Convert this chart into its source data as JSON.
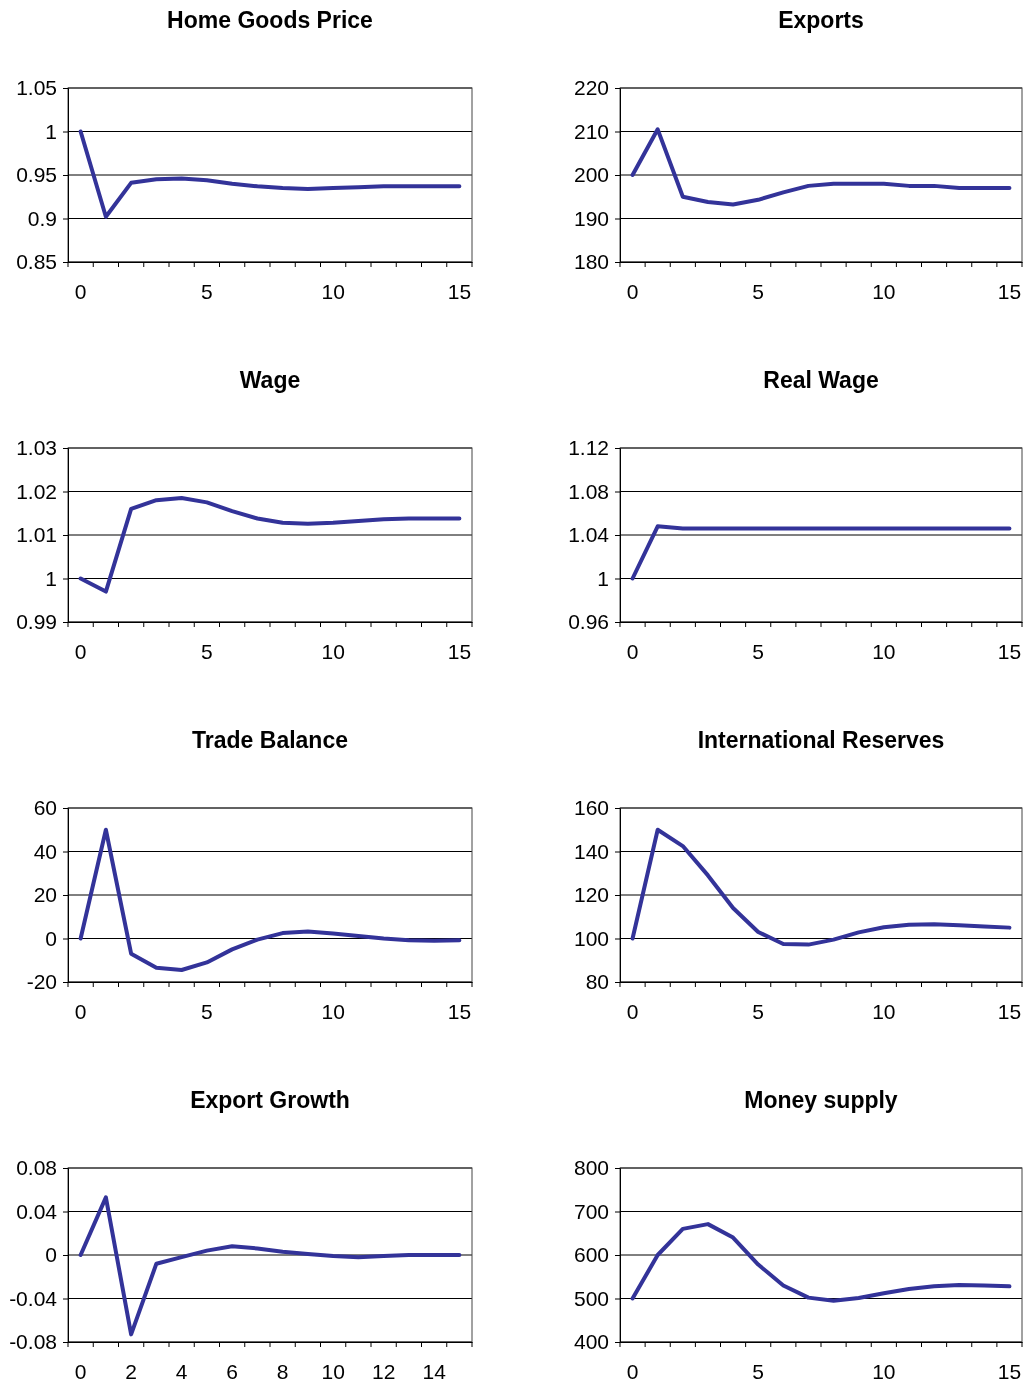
{
  "chart_data": [
    {
      "type": "line",
      "title": "Home Goods Price",
      "categories": [
        "0",
        null,
        null,
        null,
        null,
        "5",
        null,
        null,
        null,
        null,
        "10",
        null,
        null,
        null,
        null,
        "15"
      ],
      "values": [
        1.0,
        0.902,
        0.941,
        0.945,
        0.946,
        0.944,
        0.94,
        0.937,
        0.935,
        0.934,
        0.935,
        0.936,
        0.937,
        0.937,
        0.937,
        0.937
      ],
      "color": "#333399",
      "ylim": [
        0.85,
        1.05
      ],
      "yticks": [
        0.85,
        0.9,
        0.95,
        1,
        1.05
      ],
      "grid": "y"
    },
    {
      "type": "line",
      "title": "Exports",
      "categories": [
        "0",
        null,
        null,
        null,
        null,
        "5",
        null,
        null,
        null,
        null,
        "10",
        null,
        null,
        null,
        null,
        "15"
      ],
      "values": [
        200,
        210.5,
        195,
        193.8,
        193.2,
        194.3,
        196,
        197.5,
        198,
        198,
        198,
        197.5,
        197.5,
        197,
        197,
        197
      ],
      "color": "#333399",
      "ylim": [
        180,
        220
      ],
      "yticks": [
        180,
        190,
        200,
        210,
        220
      ],
      "grid": "y"
    },
    {
      "type": "line",
      "title": "Wage",
      "categories": [
        "0",
        null,
        null,
        null,
        null,
        "5",
        null,
        null,
        null,
        null,
        "10",
        null,
        null,
        null,
        null,
        "15"
      ],
      "values": [
        1.0,
        0.997,
        1.016,
        1.018,
        1.0185,
        1.0175,
        1.0155,
        1.0138,
        1.0128,
        1.0126,
        1.0128,
        1.0132,
        1.0136,
        1.0138,
        1.0138,
        1.0138
      ],
      "color": "#333399",
      "ylim": [
        0.99,
        1.03
      ],
      "yticks": [
        0.99,
        1,
        1.01,
        1.02,
        1.03
      ],
      "grid": "y"
    },
    {
      "type": "line",
      "title": "Real Wage",
      "categories": [
        "0",
        null,
        null,
        null,
        null,
        "5",
        null,
        null,
        null,
        null,
        "10",
        null,
        null,
        null,
        null,
        "15"
      ],
      "values": [
        1.0,
        1.048,
        1.046,
        1.046,
        1.046,
        1.046,
        1.046,
        1.046,
        1.046,
        1.046,
        1.046,
        1.046,
        1.046,
        1.046,
        1.046,
        1.046
      ],
      "color": "#333399",
      "ylim": [
        0.96,
        1.12
      ],
      "yticks": [
        0.96,
        1,
        1.04,
        1.08,
        1.12
      ],
      "grid": "y"
    },
    {
      "type": "line",
      "title": "Trade Balance",
      "categories": [
        "0",
        null,
        null,
        null,
        null,
        "5",
        null,
        null,
        null,
        null,
        "10",
        null,
        null,
        null,
        null,
        "15"
      ],
      "values": [
        0,
        50,
        -7,
        -13.5,
        -14.5,
        -11,
        -5,
        -0.5,
        2.5,
        3.2,
        2.3,
        1.2,
        0,
        -0.8,
        -1,
        -0.8
      ],
      "color": "#333399",
      "ylim": [
        -20,
        60
      ],
      "yticks": [
        -20,
        0,
        20,
        40,
        60
      ],
      "grid": "y"
    },
    {
      "type": "line",
      "title": "International Reserves",
      "categories": [
        "0",
        null,
        null,
        null,
        null,
        "5",
        null,
        null,
        null,
        null,
        "10",
        null,
        null,
        null,
        null,
        "15"
      ],
      "values": [
        100,
        150,
        142.5,
        129,
        114,
        103,
        97.5,
        97.2,
        99.5,
        102.8,
        105.2,
        106.3,
        106.5,
        106.1,
        105.5,
        105
      ],
      "color": "#333399",
      "ylim": [
        80,
        160
      ],
      "yticks": [
        80,
        100,
        120,
        140,
        160
      ],
      "grid": "y"
    },
    {
      "type": "line",
      "title": "Export Growth",
      "categories": [
        "0",
        null,
        "2",
        null,
        "4",
        null,
        "6",
        null,
        "8",
        null,
        "10",
        null,
        "12",
        null,
        "14",
        null
      ],
      "values": [
        0,
        0.053,
        -0.073,
        -0.008,
        -0.002,
        0.004,
        0.008,
        0.006,
        0.003,
        0.001,
        -0.001,
        -0.002,
        -0.001,
        0,
        0,
        0
      ],
      "color": "#333399",
      "ylim": [
        -0.08,
        0.08
      ],
      "yticks": [
        -0.08,
        -0.04,
        0,
        0.04,
        0.08
      ],
      "grid": "y"
    },
    {
      "type": "line",
      "title": "Money supply",
      "categories": [
        "0",
        null,
        null,
        null,
        null,
        "5",
        null,
        null,
        null,
        null,
        "10",
        null,
        null,
        null,
        null,
        "15"
      ],
      "values": [
        500,
        600,
        660,
        671,
        640,
        578,
        530,
        502,
        495,
        501,
        512,
        522,
        528,
        531,
        530,
        528
      ],
      "color": "#333399",
      "ylim": [
        400,
        800
      ],
      "yticks": [
        400,
        500,
        600,
        700,
        800
      ],
      "grid": "y"
    }
  ]
}
